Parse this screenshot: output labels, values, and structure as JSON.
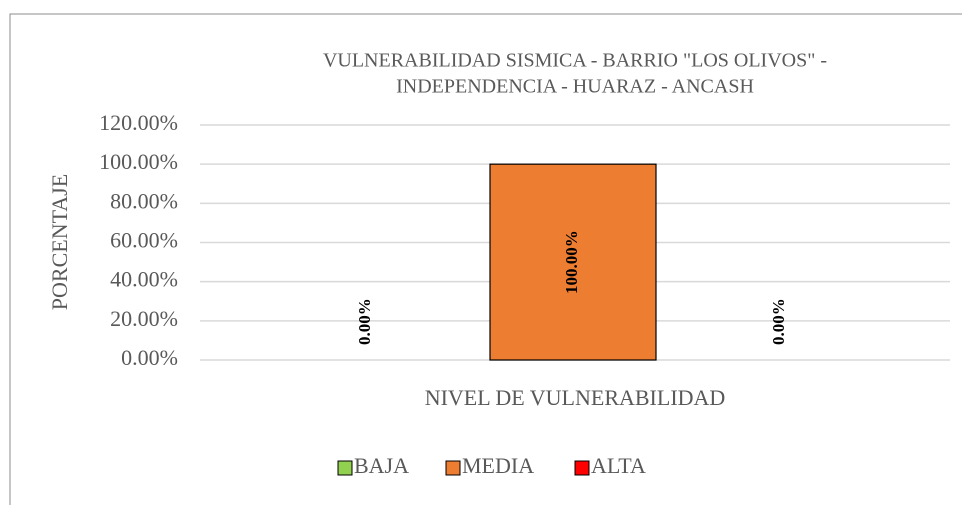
{
  "chart_data": {
    "type": "bar",
    "title": [
      "VULNERABILIDAD  SISMICA - BARRIO \"LOS OLIVOS\" -",
      "INDEPENDENCIA  - HUARAZ  - ANCASH"
    ],
    "x_label": "NIVEL DE VULNERABILIDAD",
    "y_label": "PORCENTAJE",
    "categories": [
      null
    ],
    "series": [
      {
        "name": "BAJA",
        "color": "#92d050",
        "values": [
          0
        ],
        "value_labels": [
          "0.00%"
        ]
      },
      {
        "name": "MEDIA",
        "color": "#ed7d31",
        "values": [
          100
        ],
        "value_labels": [
          "100.00%"
        ]
      },
      {
        "name": "ALTA",
        "color": "#ff0000",
        "values": [
          0
        ],
        "value_labels": [
          "0.00%"
        ]
      }
    ],
    "ylim": [
      0,
      120
    ],
    "yticks": [
      {
        "value": 0,
        "label": "0.00%"
      },
      {
        "value": 20,
        "label": "20.00%"
      },
      {
        "value": 40,
        "label": "40.00%"
      },
      {
        "value": 60,
        "label": "60.00%"
      },
      {
        "value": 80,
        "label": "80.00%"
      },
      {
        "value": 100,
        "label": "100.00%"
      },
      {
        "value": 120,
        "label": "120.00%"
      }
    ],
    "grid": true,
    "legend": "bottom"
  }
}
